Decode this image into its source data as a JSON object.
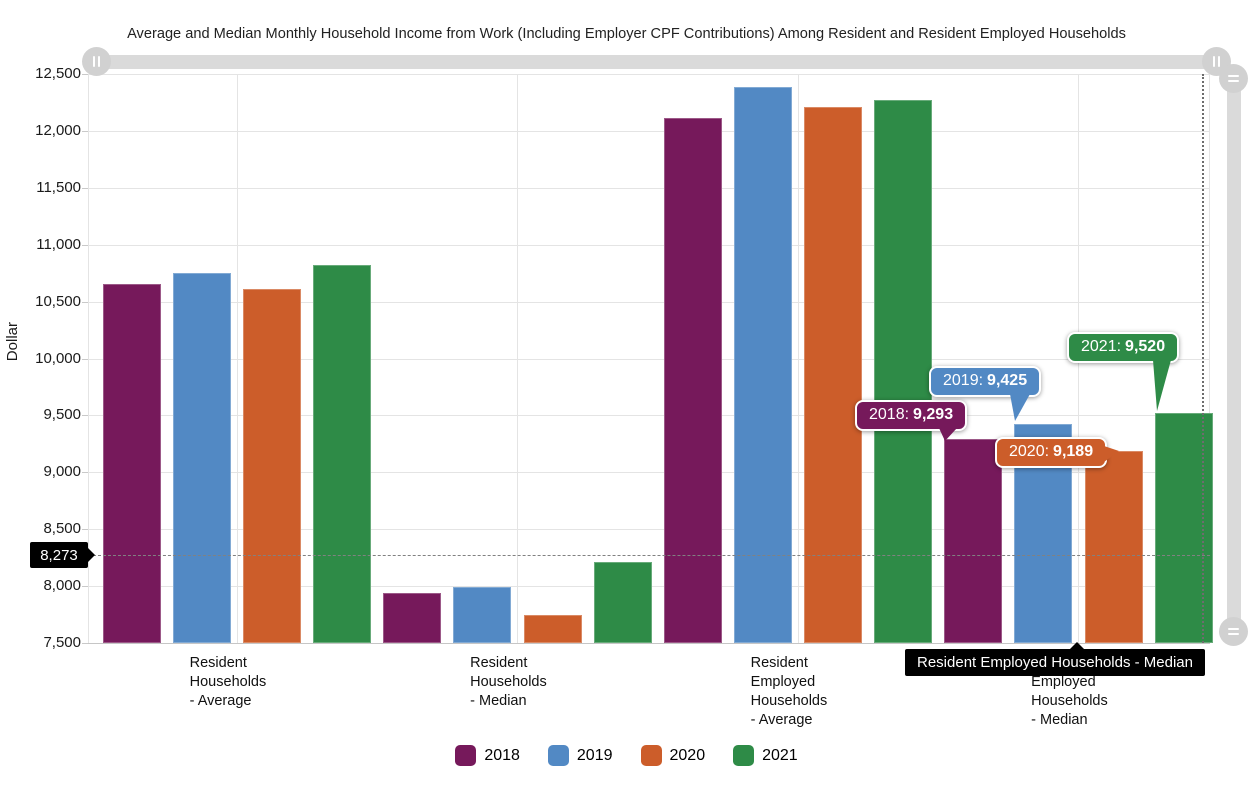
{
  "chart_data": {
    "type": "bar",
    "title": "Average and Median Monthly Household Income from Work (Including Employer CPF Contributions) Among Resident and Resident Employed Households",
    "xlabel": "",
    "ylabel": "Dollar",
    "ylim": [
      7500,
      12500
    ],
    "ytick_step": 500,
    "ytick_labels": [
      "7,500",
      "8,000",
      "8,500",
      "9,000",
      "9,500",
      "10,000",
      "10,500",
      "11,000",
      "11,500",
      "12,000",
      "12,500"
    ],
    "grid": true,
    "legend_position": "bottom",
    "categories": [
      "Resident Households - Average",
      "Resident Households - Median",
      "Resident Employed Households - Average",
      "Resident Employed Households - Median"
    ],
    "category_label_lines": [
      [
        "Resident",
        "Households",
        "- Average"
      ],
      [
        "Resident",
        "Households",
        "- Median"
      ],
      [
        "Resident",
        "Employed",
        "Households",
        "- Average"
      ],
      [
        "Resident",
        "Employed",
        "Households",
        "- Median"
      ]
    ],
    "series": [
      {
        "name": "2018",
        "color": "#76195B",
        "values": [
          10652,
          7943,
          12112,
          9293
        ]
      },
      {
        "name": "2019",
        "color": "#5289C4",
        "values": [
          10753,
          7988,
          12386,
          9425
        ]
      },
      {
        "name": "2020",
        "color": "#CC5D2A",
        "values": [
          10608,
          7744,
          12209,
          9189
        ]
      },
      {
        "name": "2021",
        "color": "#2E8B47",
        "values": [
          10823,
          8213,
          12269,
          9520
        ]
      }
    ]
  },
  "tooltips": {
    "bars": [
      {
        "series": "2018",
        "text": "2018:",
        "value": "9,293",
        "color": "#76195B"
      },
      {
        "series": "2019",
        "text": "2019:",
        "value": "9,425",
        "color": "#5289C4"
      },
      {
        "series": "2020",
        "text": "2020:",
        "value": "9,189",
        "color": "#CC5D2A"
      },
      {
        "series": "2021",
        "text": "2021:",
        "value": "9,520",
        "color": "#2E8B47"
      }
    ],
    "y_axis": {
      "value": "8,273"
    },
    "x_axis": {
      "value": "Resident Employed Households - Median"
    }
  },
  "crosshair": {
    "y_value": 8273,
    "y_label": "8,273",
    "x_category": "Resident Employed Households - Median"
  },
  "legend": {
    "items": [
      {
        "label": "2018",
        "color": "#76195B"
      },
      {
        "label": "2019",
        "color": "#5289C4"
      },
      {
        "label": "2020",
        "color": "#CC5D2A"
      },
      {
        "label": "2021",
        "color": "#2E8B47"
      }
    ]
  },
  "controls": {
    "h_scrollbar": {
      "left_grip_icon": "grip-lines-vertical",
      "right_grip_icon": "grip-lines-vertical"
    },
    "v_scrollbar": {
      "top_grip_icon": "grip-lines-horizontal",
      "bottom_grip_icon": "grip-lines-horizontal"
    }
  },
  "colors": {
    "background": "#ffffff",
    "grid": "#e4e4e4",
    "axis_tooltip_bg": "#000000",
    "scrollbar": "#dadada"
  }
}
